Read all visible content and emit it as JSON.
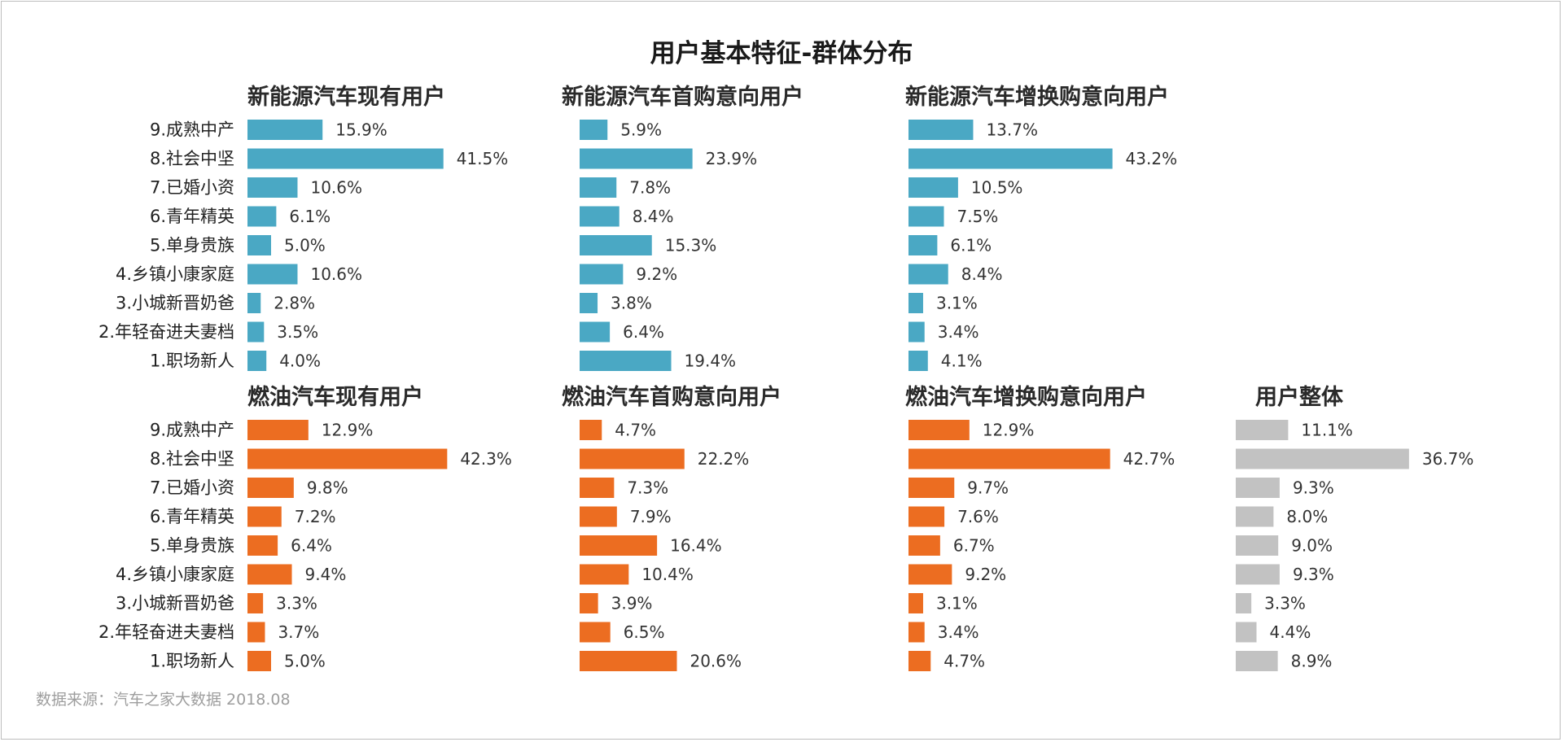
{
  "chart_data": {
    "type": "bar",
    "orientation": "horizontal",
    "title": "用户基本特征-群体分布",
    "categories": [
      "9.成熟中产",
      "8.社会中坚",
      "7.已婚小资",
      "6.青年精英",
      "5.单身贵族",
      "4.乡镇小康家庭",
      "3.小城新晋奶爸",
      "2.年轻奋进夫妻档",
      "1.职场新人"
    ],
    "source_note": "数据来源：汽车之家大数据 2018.08",
    "colors": {
      "new_energy": "#4aa8c4",
      "fuel": "#ec6d21",
      "overall": "#c2c2c2"
    },
    "panels": [
      {
        "title": "新能源汽车现有用户",
        "group": "new_energy",
        "values": [
          15.9,
          41.5,
          10.6,
          6.1,
          5.0,
          10.6,
          2.8,
          3.5,
          4.0
        ],
        "labels": [
          "15.9%",
          "41.5%",
          "10.6%",
          "6.1%",
          "5.0%",
          "10.6%",
          "2.8%",
          "3.5%",
          "4.0%"
        ]
      },
      {
        "title": "新能源汽车首购意向用户",
        "group": "new_energy",
        "values": [
          5.9,
          23.9,
          7.8,
          8.4,
          15.3,
          9.2,
          3.8,
          6.4,
          19.4
        ],
        "labels": [
          "5.9%",
          "23.9%",
          "7.8%",
          "8.4%",
          "15.3%",
          "9.2%",
          "3.8%",
          "6.4%",
          "19.4%"
        ]
      },
      {
        "title": "新能源汽车增换购意向用户",
        "group": "new_energy",
        "values": [
          13.7,
          43.2,
          10.5,
          7.5,
          6.1,
          8.4,
          3.1,
          3.4,
          4.1
        ],
        "labels": [
          "13.7%",
          "43.2%",
          "10.5%",
          "7.5%",
          "6.1%",
          "8.4%",
          "3.1%",
          "3.4%",
          "4.1%"
        ]
      },
      {
        "title": "燃油汽车现有用户",
        "group": "fuel",
        "values": [
          12.9,
          42.3,
          9.8,
          7.2,
          6.4,
          9.4,
          3.3,
          3.7,
          5.0
        ],
        "labels": [
          "12.9%",
          "42.3%",
          "9.8%",
          "7.2%",
          "6.4%",
          "9.4%",
          "3.3%",
          "3.7%",
          "5.0%"
        ]
      },
      {
        "title": "燃油汽车首购意向用户",
        "group": "fuel",
        "values": [
          4.7,
          22.2,
          7.3,
          7.9,
          16.4,
          10.4,
          3.9,
          6.5,
          20.6
        ],
        "labels": [
          "4.7%",
          "22.2%",
          "7.3%",
          "7.9%",
          "16.4%",
          "10.4%",
          "3.9%",
          "6.5%",
          "20.6%"
        ]
      },
      {
        "title": "燃油汽车增换购意向用户",
        "group": "fuel",
        "values": [
          12.9,
          42.7,
          9.7,
          7.6,
          6.7,
          9.2,
          3.1,
          3.4,
          4.7
        ],
        "labels": [
          "12.9%",
          "42.7%",
          "9.7%",
          "7.6%",
          "6.7%",
          "9.2%",
          "3.1%",
          "3.4%",
          "4.7%"
        ]
      },
      {
        "title": "用户整体",
        "group": "overall",
        "values": [
          11.1,
          36.7,
          9.3,
          8.0,
          9.0,
          9.3,
          3.3,
          4.4,
          8.9
        ],
        "labels": [
          "11.1%",
          "36.7%",
          "9.3%",
          "8.0%",
          "9.0%",
          "9.3%",
          "3.3%",
          "4.4%",
          "8.9%"
        ]
      }
    ]
  }
}
